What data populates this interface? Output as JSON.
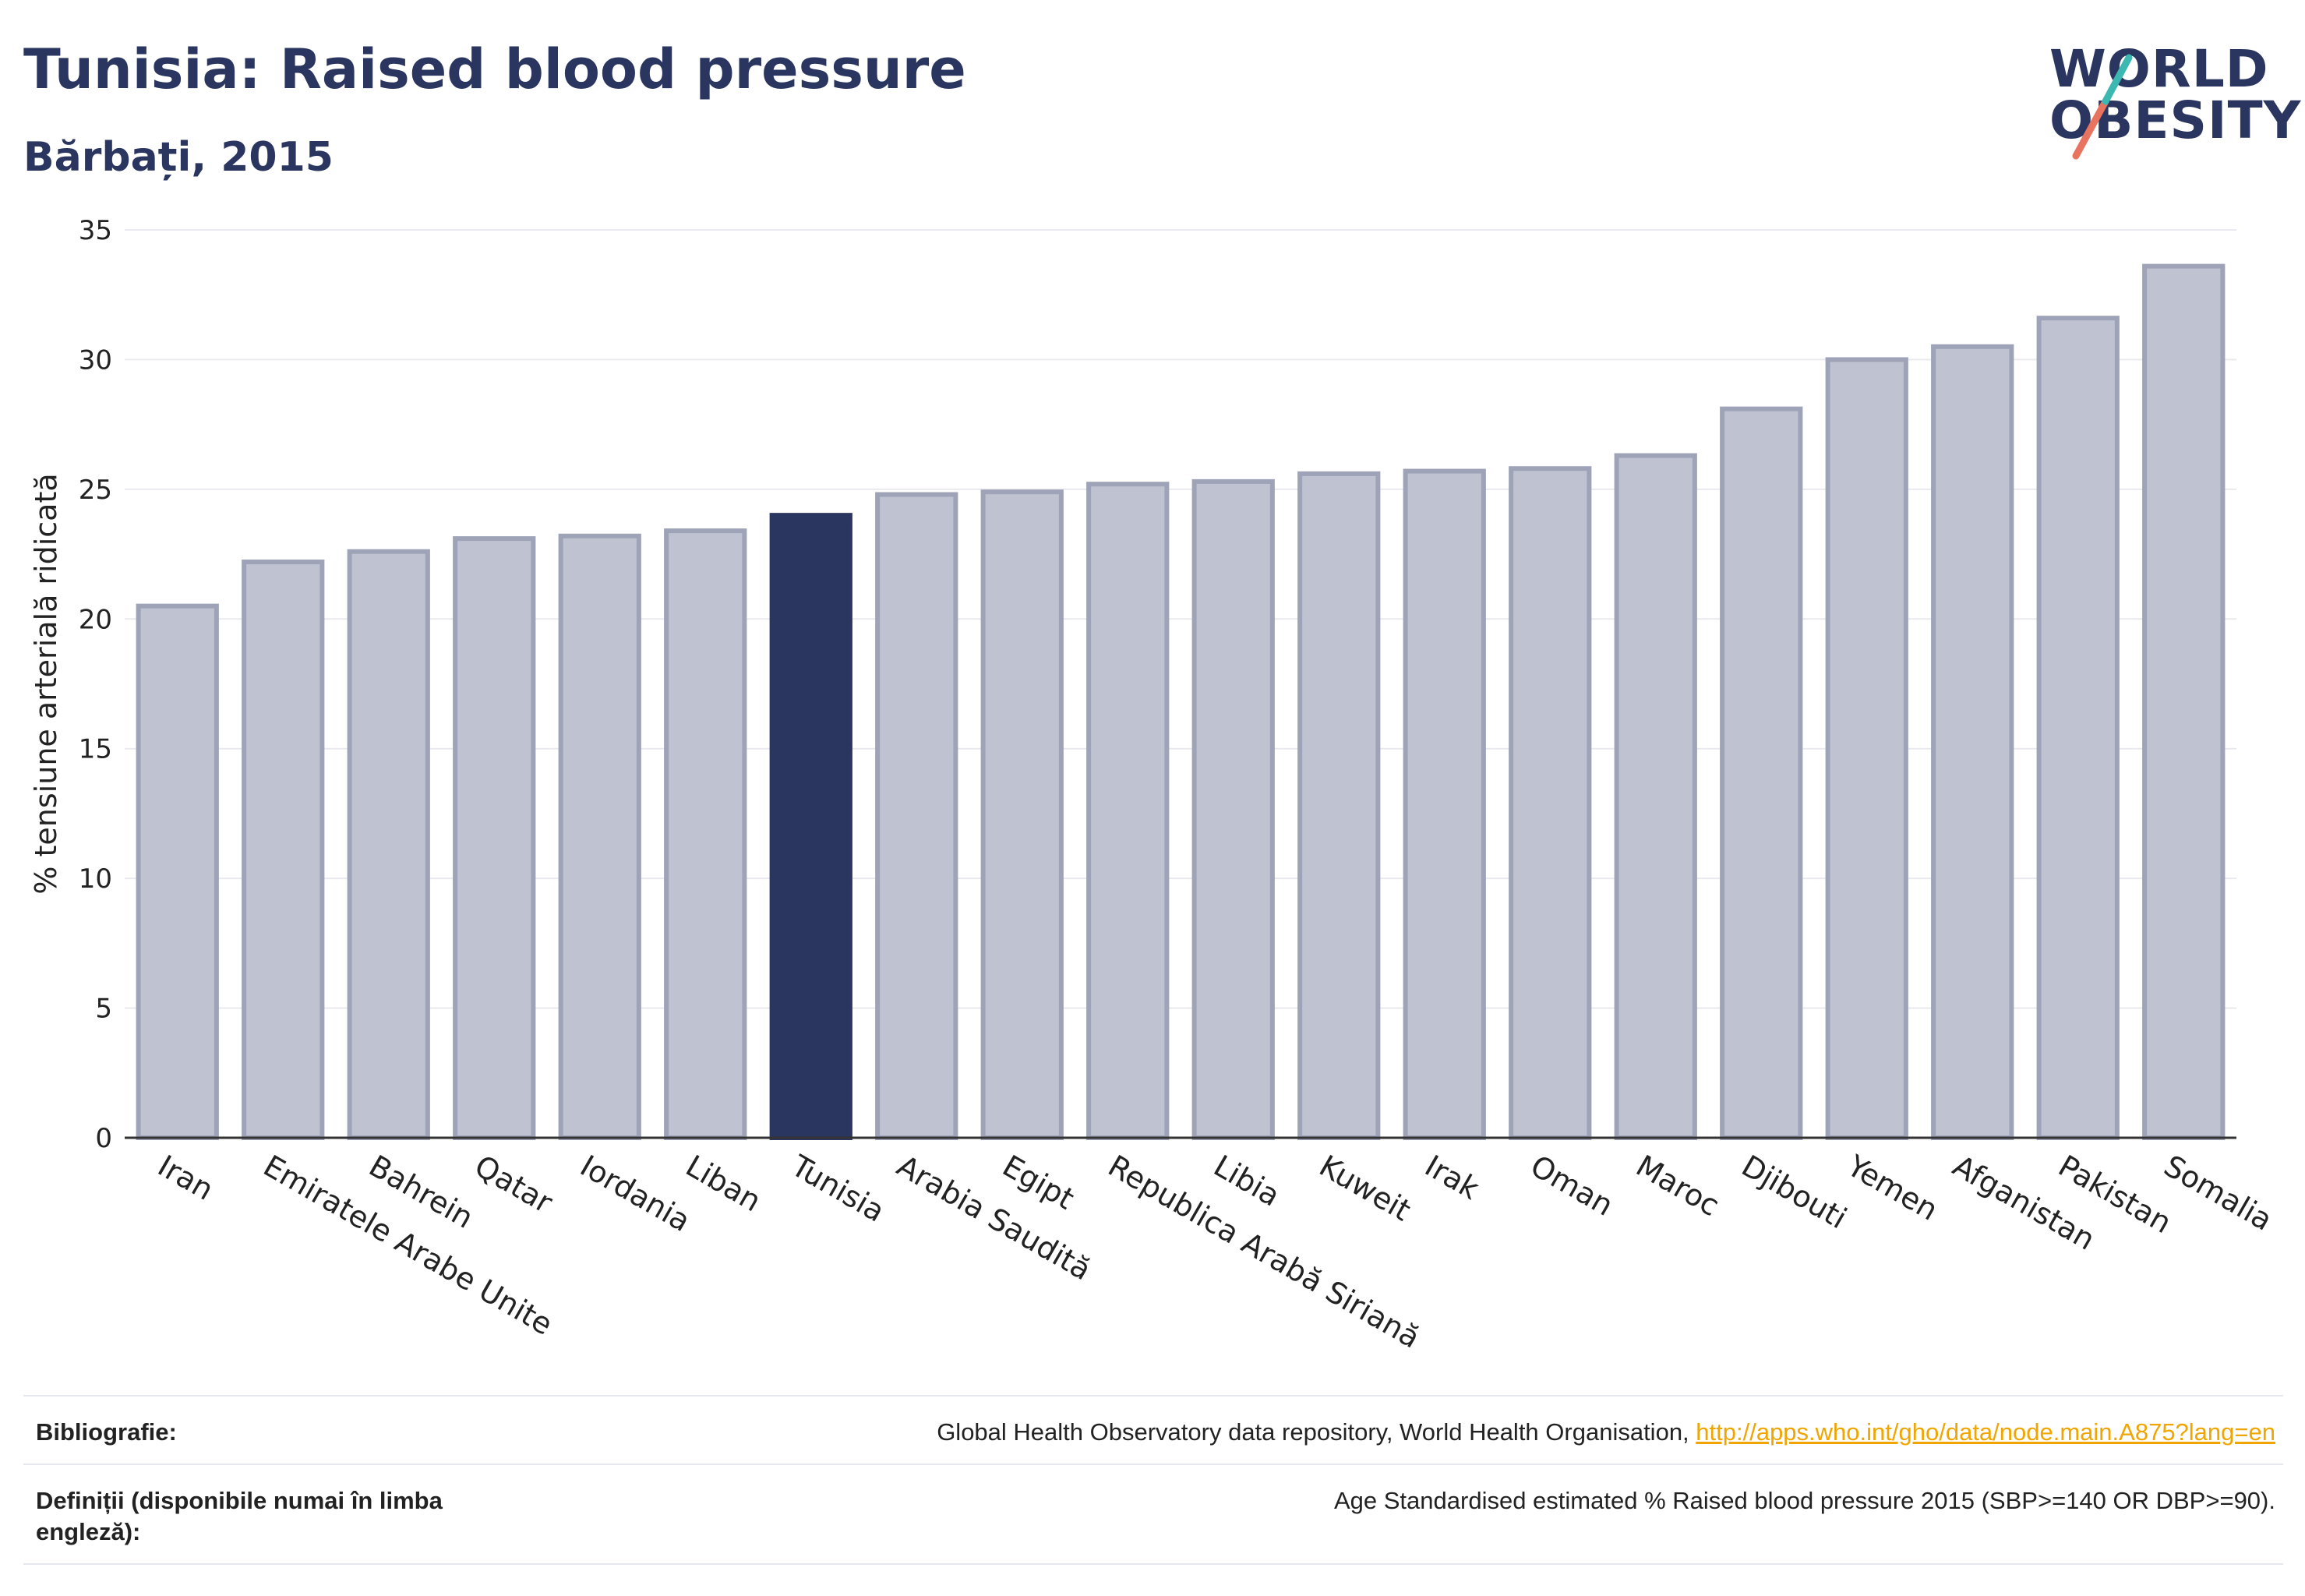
{
  "header": {
    "title": "Tunisia: Raised blood pressure",
    "subtitle": "Bărbați, 2015"
  },
  "logo": {
    "line1": "WORLD",
    "line2": "OBESITY"
  },
  "chart_data": {
    "type": "bar",
    "ylabel": "% tensiune arterială ridicată",
    "xlabel": "",
    "ylim": [
      0,
      35
    ],
    "yticks": [
      0,
      5,
      10,
      15,
      20,
      25,
      30,
      35
    ],
    "grid": true,
    "highlight": "Tunisia",
    "colors": {
      "bar": "#bfc2d0",
      "bar_border": "#9ea3b8",
      "highlight": "#2a3560",
      "grid": "#e9e9ef"
    },
    "categories": [
      "Iran",
      "Emiratele Arabe Unite",
      "Bahrein",
      "Qatar",
      "Iordania",
      "Liban",
      "Tunisia",
      "Arabia Saudită",
      "Egipt",
      "Republica Arabă Siriană",
      "Libia",
      "Kuweit",
      "Irak",
      "Oman",
      "Maroc",
      "Djibouti",
      "Yemen",
      "Afganistan",
      "Pakistan",
      "Somalia"
    ],
    "values": [
      20.5,
      22.2,
      22.6,
      23.1,
      23.2,
      23.4,
      24.0,
      24.8,
      24.9,
      25.2,
      25.3,
      25.6,
      25.7,
      25.8,
      26.3,
      28.1,
      30.0,
      30.5,
      31.6,
      33.6
    ]
  },
  "footer": {
    "bibliography_label": "Bibliografie:",
    "bibliography_text": "Global Health Observatory data repository, World Health Organisation, ",
    "bibliography_link": "http://apps.who.int/gho/data/node.main.A875?lang=en",
    "definitions_label": "Definiții (disponibile numai în limba engleză):",
    "definitions_text": "Age Standardised estimated % Raised blood pressure 2015 (SBP>=140 OR DBP>=90)."
  }
}
